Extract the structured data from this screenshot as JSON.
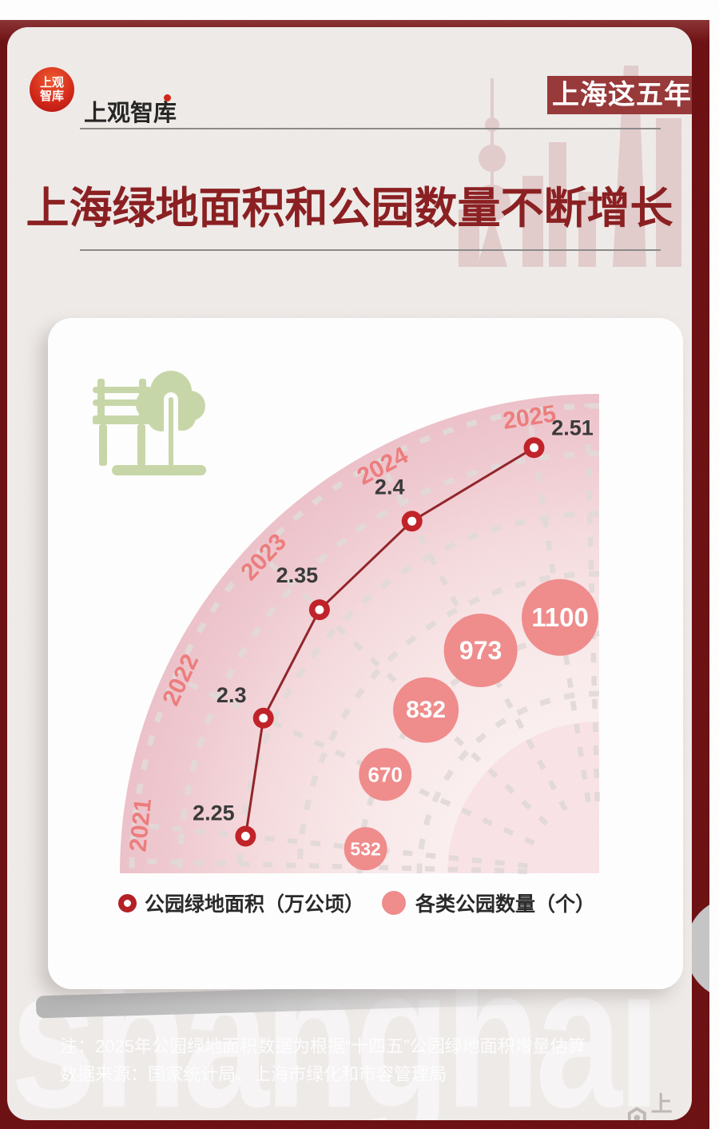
{
  "header": {
    "logo_circle_line1": "上观",
    "logo_circle_line2": "智库",
    "logo_text": "上观智库",
    "tag": "上海这五年",
    "title": "上海绿地面积和公园数量不断增长"
  },
  "chart_data": {
    "type": "radial-line-and-bubble",
    "categories": [
      "2021",
      "2022",
      "2023",
      "2024",
      "2025"
    ],
    "series": [
      {
        "name": "公园绿地面积（万公顷）",
        "values": [
          2.25,
          2.3,
          2.35,
          2.4,
          2.51
        ],
        "labels": [
          "2.25",
          "2.3",
          "2.35",
          "2.4",
          "2.51"
        ]
      },
      {
        "name": "各类公园数量（个）",
        "values": [
          532,
          670,
          832,
          973,
          1100
        ],
        "labels": [
          "532",
          "670",
          "832",
          "973",
          "1100"
        ]
      }
    ],
    "legend_position": "bottom",
    "grid": "dashed-polar",
    "colors": {
      "line": "#93262b",
      "point_ring": "#c22329",
      "bubble": "#f18d8d",
      "year_label": "#ee7e7e",
      "value_label": "#3a3a3a",
      "fan_rim": "#eec3cb",
      "fan_inner_disc": "#fae4e7",
      "grid_dash": "#e2dbd9"
    }
  },
  "legend": [
    {
      "label": "公园绿地面积（万公顷）"
    },
    {
      "label": "各类公园数量（个）"
    }
  ],
  "notes": {
    "line1": "注：2025年公园绿地面积数据为根据“十四五”公园绿地面积增量估算",
    "line2": "数据来源：国家统计局、上海市绿化和市容管理局"
  },
  "watermark": "shanghai",
  "footer_logo_text": "上观"
}
